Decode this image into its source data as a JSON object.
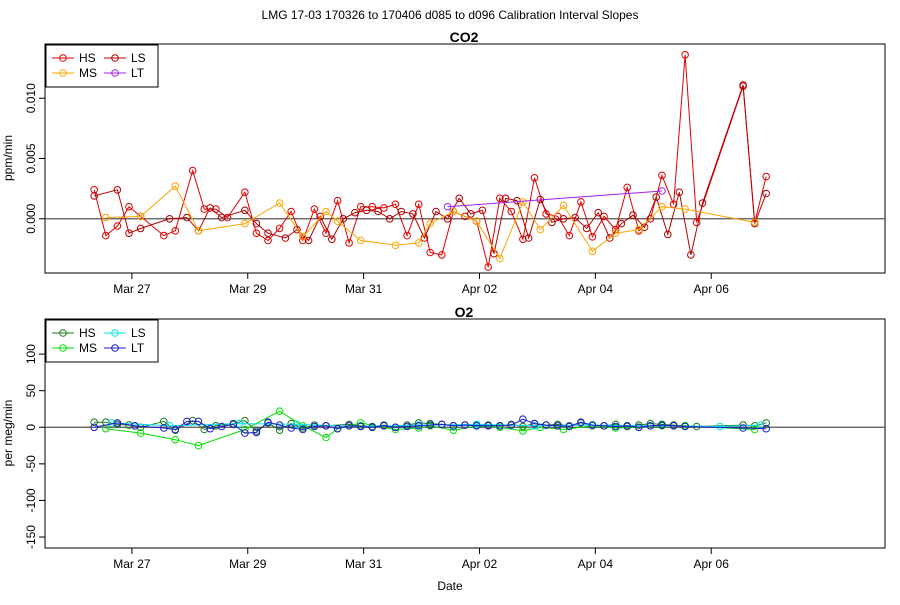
{
  "main_title": "LMG   17-03    170326 to 170406    d085 to d096   Calibration Interval Slopes",
  "x_axis_label": "Date",
  "x_ticks": [
    {
      "label": "Mar 27",
      "day": 27
    },
    {
      "label": "Mar 29",
      "day": 29
    },
    {
      "label": "Mar 31",
      "day": 31
    },
    {
      "label": "Apr 02",
      "day": 33
    },
    {
      "label": "Apr 04",
      "day": 35
    },
    {
      "label": "Apr 06",
      "day": 37
    }
  ],
  "chart_data": [
    {
      "type": "line",
      "title": "CO2",
      "ylabel": "ppm/min",
      "xlim": [
        25.5,
        40.0
      ],
      "ylim": [
        -0.0045,
        0.0145
      ],
      "yticks": [
        0.0,
        0.005,
        0.01
      ],
      "ytick_labels": [
        "0.000",
        "0.005",
        "0.010"
      ],
      "hline": 0,
      "legend": [
        {
          "name": "HS",
          "color": "#e00000"
        },
        {
          "name": "LS",
          "color": "#b30000"
        },
        {
          "name": "MS",
          "color": "#ffa500"
        },
        {
          "name": "LT",
          "color": "#a020f0"
        }
      ],
      "series": [
        {
          "name": "HS",
          "color": "#e00000",
          "x": [
            26.35,
            26.55,
            26.75,
            26.95,
            27.15,
            27.55,
            27.75,
            28.05,
            28.25,
            28.45,
            28.65,
            28.95,
            29.15,
            29.35,
            29.55,
            29.75,
            29.95,
            30.15,
            30.35,
            30.55,
            30.75,
            30.95,
            31.15,
            31.35,
            31.55,
            31.75,
            31.95,
            32.15,
            32.35,
            32.55,
            32.75,
            32.95,
            33.15,
            33.35,
            33.55,
            33.75,
            33.95,
            34.15,
            34.35,
            34.55,
            34.75,
            34.95,
            35.15,
            35.35,
            35.55,
            35.75,
            35.95,
            36.15,
            36.35,
            36.55,
            36.75,
            37.55,
            37.75,
            37.95
          ],
          "y": [
            0.0024,
            -0.0014,
            -0.0006,
            0.001,
            0.0002,
            -0.0014,
            -0.001,
            0.004,
            0.0008,
            0.0008,
            0.0001,
            0.0022,
            -0.0012,
            -0.0018,
            -0.0008,
            0.0006,
            -0.0018,
            0.0008,
            -0.0012,
            0.0015,
            -0.002,
            0.001,
            0.001,
            0.0009,
            0.0012,
            -0.0014,
            0.0012,
            -0.0028,
            -0.003,
            0.0006,
            0.0002,
            -0.0002,
            -0.004,
            0.0017,
            0.0006,
            -0.0017,
            0.0034,
            0.0004,
            0.0002,
            -0.0014,
            0.0014,
            -0.0015,
            0.0002,
            -0.0009,
            0.0026,
            -0.001,
            0.0,
            0.0036,
            0.0012,
            0.0136,
            -0.0003,
            0.011,
            -0.0003,
            0.0035
          ]
        },
        {
          "name": "LS",
          "color": "#b30000",
          "x": [
            26.35,
            26.75,
            26.95,
            27.15,
            27.65,
            27.95,
            28.15,
            28.35,
            28.55,
            28.95,
            29.15,
            29.35,
            29.65,
            29.85,
            30.05,
            30.25,
            30.45,
            30.65,
            30.85,
            31.05,
            31.25,
            31.45,
            31.65,
            31.85,
            32.05,
            32.25,
            32.45,
            32.65,
            32.85,
            33.05,
            33.25,
            33.45,
            33.65,
            33.85,
            34.05,
            34.25,
            34.45,
            34.65,
            34.85,
            35.05,
            35.25,
            35.45,
            35.65,
            35.85,
            36.05,
            36.25,
            36.45,
            36.65,
            36.85,
            37.55,
            37.75,
            37.95
          ],
          "y": [
            0.0019,
            0.0024,
            -0.0012,
            -0.0008,
            0.0,
            0.0001,
            -0.001,
            0.0009,
            0.0001,
            0.0007,
            -0.0004,
            -0.0012,
            -0.0016,
            -0.0009,
            -0.0018,
            0.0002,
            -0.0017,
            0.0,
            0.0005,
            0.0007,
            0.0006,
            0.0,
            0.0006,
            0.0004,
            -0.0016,
            0.0006,
            0.0,
            0.0017,
            0.0004,
            0.0007,
            -0.0029,
            0.0017,
            0.0015,
            -0.0016,
            0.0016,
            -0.0003,
            0.0,
            0.0001,
            -0.0008,
            0.0005,
            -0.0016,
            -0.0004,
            0.0003,
            -0.0007,
            0.0018,
            -0.0013,
            0.0022,
            -0.003,
            0.0013,
            0.0111,
            -0.0004,
            0.0021
          ]
        },
        {
          "name": "MS",
          "color": "#ffa500",
          "x": [
            26.55,
            27.15,
            27.75,
            28.15,
            28.95,
            29.55,
            29.95,
            30.35,
            30.55,
            30.95,
            31.55,
            31.95,
            32.15,
            32.55,
            32.95,
            33.35,
            33.75,
            34.05,
            34.45,
            34.95,
            35.35,
            35.75,
            36.15,
            36.55,
            37.75
          ],
          "y": [
            0.0001,
            0.0002,
            0.0027,
            -0.001,
            -0.0004,
            0.0013,
            -0.0015,
            0.0006,
            -0.0002,
            -0.0018,
            -0.0022,
            -0.002,
            -0.0004,
            0.0006,
            -0.0002,
            -0.0033,
            0.0014,
            -0.0009,
            0.0011,
            -0.0027,
            -0.0012,
            -0.0009,
            0.001,
            0.0008,
            -0.0003
          ]
        },
        {
          "name": "LT",
          "color": "#a020f0",
          "x": [
            32.45,
            36.15
          ],
          "y": [
            0.001,
            0.0023
          ]
        }
      ]
    },
    {
      "type": "line",
      "title": "O2",
      "ylabel": "per meg/min",
      "xlim": [
        25.5,
        40.0
      ],
      "ylim": [
        -165,
        148
      ],
      "yticks": [
        -150,
        -100,
        -50,
        0,
        50,
        100
      ],
      "ytick_labels": [
        "-150",
        "-100",
        "-50",
        "0",
        "50",
        "100"
      ],
      "hline": 0,
      "legend": [
        {
          "name": "HS",
          "color": "#1a7a1a"
        },
        {
          "name": "LS",
          "color": "#00e5ee"
        },
        {
          "name": "MS",
          "color": "#00e000"
        },
        {
          "name": "LT",
          "color": "#1c1ccc"
        }
      ],
      "series": [
        {
          "name": "HS",
          "color": "#1a7a1a",
          "x": [
            26.35,
            26.55,
            26.75,
            26.95,
            27.15,
            27.55,
            27.75,
            28.05,
            28.25,
            28.45,
            28.75,
            28.95,
            29.15,
            29.35,
            29.55,
            29.75,
            29.95,
            30.15,
            30.35,
            30.75,
            30.95,
            31.15,
            31.35,
            31.55,
            31.75,
            31.95,
            32.15,
            32.35,
            32.55,
            32.75,
            32.95,
            33.15,
            33.35,
            33.55,
            33.75,
            33.95,
            34.15,
            34.35,
            34.55,
            34.75,
            34.95,
            35.15,
            35.35,
            35.55,
            35.75,
            35.95,
            36.15,
            36.35,
            36.55,
            36.75,
            37.55,
            37.75,
            37.95
          ],
          "y": [
            7,
            7,
            4,
            3,
            0,
            8,
            -4,
            9,
            -3,
            2,
            5,
            9,
            -5,
            6,
            -4,
            5,
            -1,
            3,
            2,
            4,
            2,
            1,
            3,
            0,
            3,
            6,
            5,
            4,
            2,
            3,
            3,
            3,
            2,
            4,
            1,
            5,
            3,
            4,
            2,
            6,
            3,
            2,
            4,
            1,
            3,
            5,
            4,
            3,
            2,
            1,
            3,
            2,
            6
          ]
        },
        {
          "name": "MS",
          "color": "#00e000",
          "x": [
            26.55,
            27.15,
            27.75,
            28.15,
            28.95,
            29.55,
            29.95,
            30.35,
            30.55,
            30.95,
            31.55,
            31.95,
            32.15,
            32.55,
            32.95,
            33.35,
            33.75,
            34.05,
            34.45,
            34.95,
            35.35,
            35.75,
            36.15,
            36.55,
            37.75
          ],
          "y": [
            -2,
            -8,
            -17,
            -25,
            -3,
            22,
            2,
            -14,
            -2,
            6,
            -3,
            -1,
            2,
            -4,
            2,
            0,
            -5,
            0,
            -3,
            2,
            -1,
            0,
            2,
            2,
            -3
          ]
        },
        {
          "name": "LS",
          "color": "#00e5ee",
          "x": [
            26.65,
            27.65,
            28.85,
            29.85,
            30.95,
            31.95,
            32.95,
            33.95,
            34.95,
            35.95,
            37.15,
            37.85
          ],
          "y": [
            6,
            2,
            5,
            4,
            1,
            3,
            4,
            2,
            3,
            2,
            1,
            3
          ]
        },
        {
          "name": "LT",
          "color": "#1c1ccc",
          "x": [
            26.35,
            26.75,
            27.05,
            27.55,
            27.75,
            27.95,
            28.15,
            28.35,
            28.55,
            28.75,
            28.95,
            29.15,
            29.35,
            29.55,
            29.75,
            29.95,
            30.15,
            30.35,
            30.55,
            30.75,
            30.95,
            31.15,
            31.35,
            31.55,
            31.75,
            31.95,
            32.15,
            32.35,
            32.55,
            32.75,
            32.95,
            33.15,
            33.35,
            33.55,
            33.75,
            33.95,
            34.15,
            34.35,
            34.55,
            34.75,
            34.95,
            35.15,
            35.35,
            35.55,
            35.75,
            35.95,
            36.15,
            36.35,
            36.55,
            37.55,
            37.95
          ],
          "y": [
            0,
            6,
            2,
            -1,
            -3,
            8,
            8,
            -2,
            1,
            4,
            -8,
            -7,
            7,
            3,
            -1,
            -3,
            1,
            2,
            -2,
            2,
            1,
            0,
            2,
            0,
            1,
            2,
            3,
            4,
            2,
            3,
            2,
            2,
            2,
            3,
            11,
            5,
            3,
            2,
            1,
            7,
            3,
            2,
            1,
            2,
            0,
            2,
            3,
            2,
            1,
            -1,
            -2
          ]
        }
      ]
    }
  ]
}
